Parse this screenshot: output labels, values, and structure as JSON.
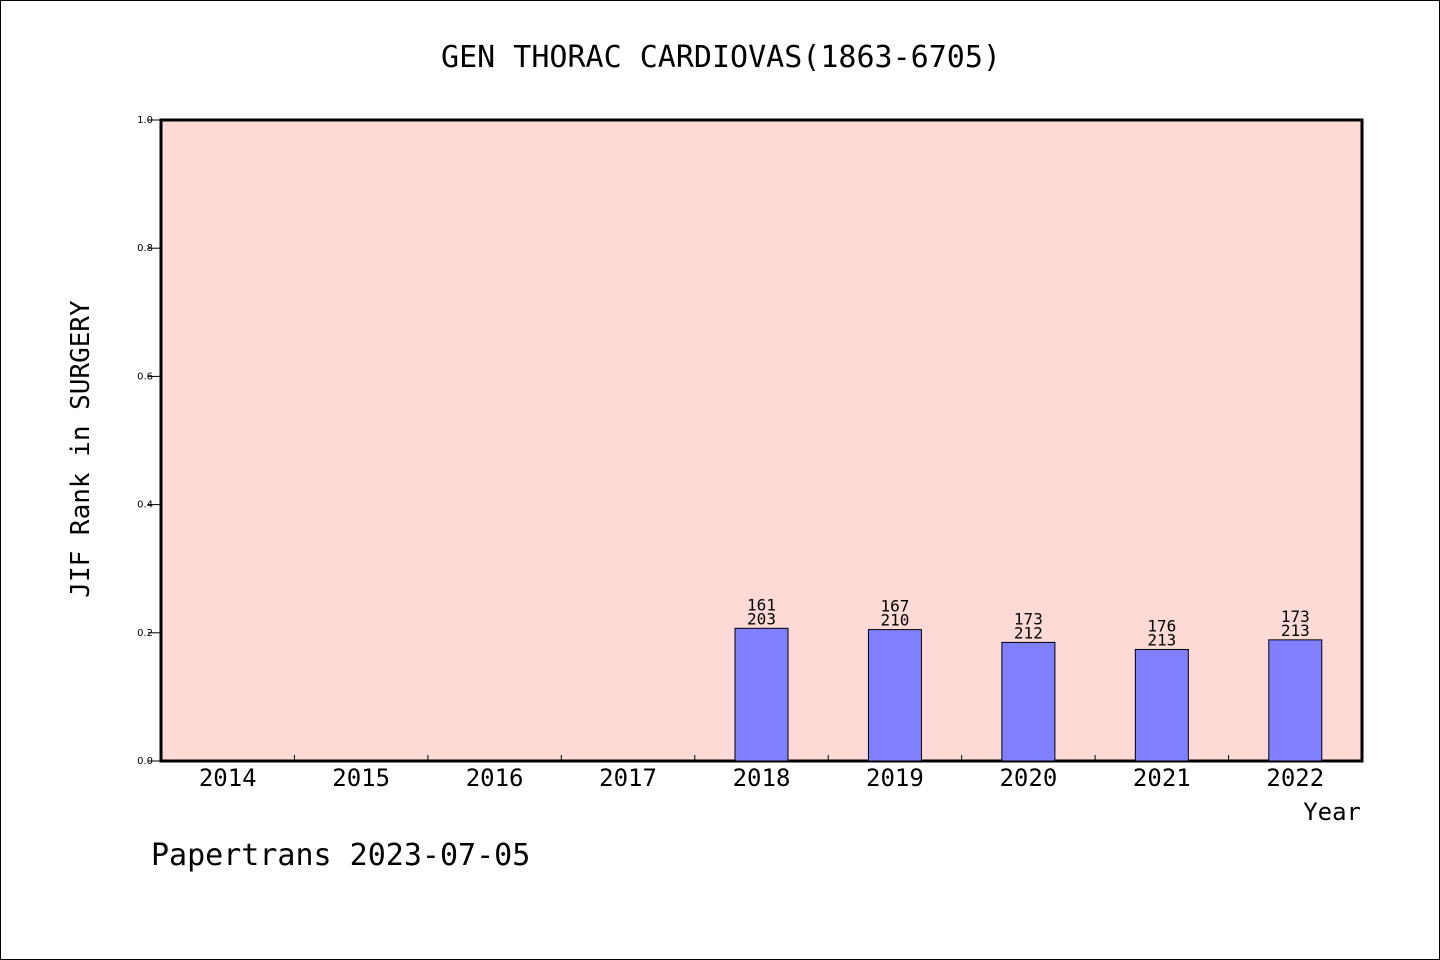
{
  "chart_data": {
    "type": "bar",
    "title": "GEN THORAC CARDIOVAS(1863-6705)",
    "ylabel": "JIF Rank in SURGERY",
    "xlabel": "Year",
    "categories": [
      "2014",
      "2015",
      "2016",
      "2017",
      "2018",
      "2019",
      "2020",
      "2021",
      "2022"
    ],
    "values": [
      null,
      null,
      null,
      null,
      0.207,
      0.205,
      0.185,
      0.174,
      0.189
    ],
    "data_labels": [
      null,
      null,
      null,
      null,
      {
        "rank": "161",
        "total": "203"
      },
      {
        "rank": "167",
        "total": "210"
      },
      {
        "rank": "173",
        "total": "212"
      },
      {
        "rank": "176",
        "total": "213"
      },
      {
        "rank": "173",
        "total": "213"
      }
    ],
    "ylim": [
      0,
      1.0
    ],
    "yticks": [
      "0.0",
      "0.2",
      "0.4",
      "0.6",
      "0.8",
      "1.0"
    ],
    "grid": false,
    "legend": "none",
    "colors": {
      "plot_background": "#fddad6",
      "bar_fill": "#8080ff",
      "bar_edge": "#000000"
    }
  },
  "footer": "Papertrans 2023-07-05"
}
